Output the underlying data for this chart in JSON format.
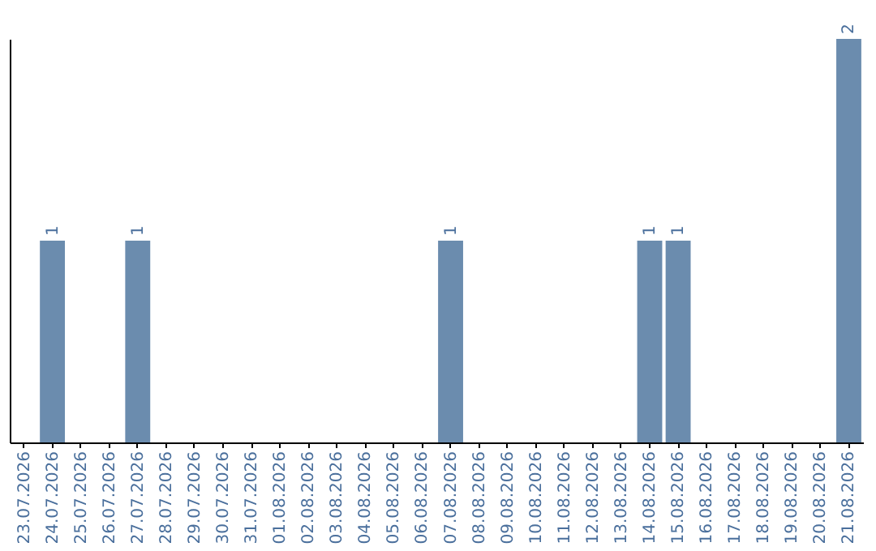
{
  "chart_data": {
    "type": "bar",
    "categories": [
      "23.07.2026",
      "24.07.2026",
      "25.07.2026",
      "26.07.2026",
      "27.07.2026",
      "28.07.2026",
      "29.07.2026",
      "30.07.2026",
      "31.07.2026",
      "01.08.2026",
      "02.08.2026",
      "03.08.2026",
      "04.08.2026",
      "05.08.2026",
      "06.08.2026",
      "07.08.2026",
      "08.08.2026",
      "09.08.2026",
      "10.08.2026",
      "11.08.2026",
      "12.08.2026",
      "13.08.2026",
      "14.08.2026",
      "15.08.2026",
      "16.08.2026",
      "17.08.2026",
      "18.08.2026",
      "19.08.2026",
      "20.08.2026",
      "21.08.2026"
    ],
    "values": [
      null,
      1,
      null,
      null,
      1,
      null,
      null,
      null,
      null,
      null,
      null,
      null,
      null,
      null,
      null,
      1,
      null,
      null,
      null,
      null,
      null,
      null,
      1,
      1,
      null,
      null,
      null,
      null,
      null,
      2
    ],
    "color": "#6b8cae",
    "data_labels": true,
    "tick_labels": "x",
    "grid": false
  }
}
